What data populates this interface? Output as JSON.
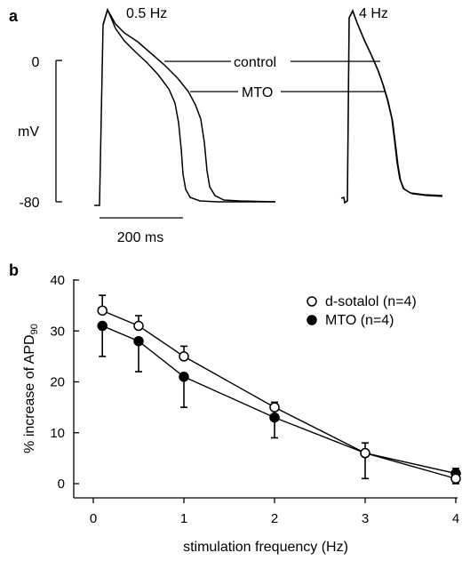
{
  "panel_a": {
    "letter": "a",
    "left_trace_label": "0.5 Hz",
    "right_trace_label": "4 Hz",
    "series_control_label": "control",
    "series_mto_label": "MTO",
    "y_unit": "mV",
    "y_tick_top": "0",
    "y_tick_bottom": "-80",
    "scale_bar_label": "200 ms"
  },
  "panel_b": {
    "letter": "b"
  },
  "chart_data": {
    "type": "line",
    "xlabel": "stimulation frequency (Hz)",
    "ylabel_prefix": "% increase of APD",
    "ylabel_subscript": "90",
    "xlim": [
      0,
      4
    ],
    "ylim": [
      0,
      40
    ],
    "x_ticks": [
      0,
      1,
      2,
      3,
      4
    ],
    "y_ticks": [
      0,
      10,
      20,
      30,
      40
    ],
    "grid": false,
    "legend_position": "top-right",
    "series": [
      {
        "name": "d-sotalol (n=4)",
        "marker": "open-circle",
        "x": [
          0.1,
          0.5,
          1,
          2,
          3,
          4
        ],
        "values": [
          34,
          31,
          25,
          15,
          6,
          1
        ],
        "error": [
          3,
          2,
          2,
          1,
          2,
          2
        ]
      },
      {
        "name": "MTO (n=4)",
        "marker": "filled-circle",
        "x": [
          0.1,
          0.5,
          1,
          2,
          3,
          4
        ],
        "values": [
          31,
          28,
          21,
          13,
          6,
          2
        ],
        "error": [
          6,
          6,
          6,
          4,
          5,
          2
        ]
      }
    ]
  }
}
